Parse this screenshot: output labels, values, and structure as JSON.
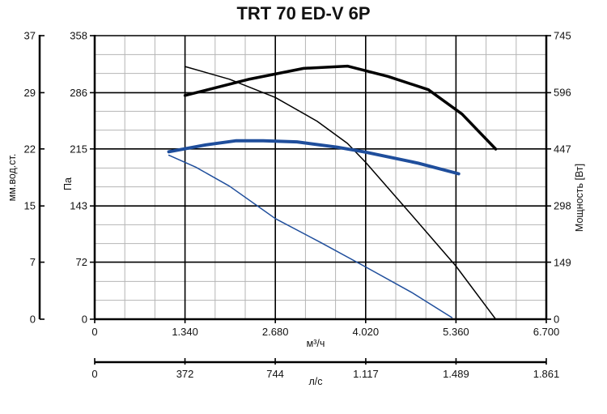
{
  "chart_data": {
    "type": "line",
    "title": "TRT 70 ED-V 6P",
    "grid": true,
    "colors": {
      "black": "#000000",
      "blue": "#1f4e9c"
    },
    "x_axis": {
      "label": "м³/ч",
      "range": [
        0,
        6700
      ],
      "ticks": [
        0,
        1340,
        2680,
        4020,
        5360,
        6700
      ],
      "tick_labels": [
        "0",
        "1.340",
        "2.680",
        "4.020",
        "5.360",
        "6.700"
      ]
    },
    "x2_axis": {
      "label": "л/с",
      "range": [
        0,
        1861
      ],
      "ticks": [
        0,
        372,
        744,
        1117,
        1489,
        1861
      ],
      "tick_labels": [
        "0",
        "372",
        "744",
        "1.117",
        "1.489",
        "1.861"
      ]
    },
    "y_axis": {
      "label": "Па",
      "range": [
        0,
        358
      ],
      "ticks": [
        0,
        72,
        143,
        215,
        286,
        358
      ],
      "tick_labels": [
        "0",
        "72",
        "143",
        "215",
        "286",
        "358"
      ]
    },
    "y_left_axis": {
      "label": "мм.вод.ст.",
      "tick_labels": [
        "0",
        "7",
        "15",
        "22",
        "29",
        "37"
      ]
    },
    "y_right_axis": {
      "label": "Мощность [Вт]",
      "range": [
        0,
        745
      ],
      "ticks": [
        0,
        149,
        298,
        447,
        596,
        745
      ],
      "tick_labels": [
        "0",
        "149",
        "298",
        "447",
        "596",
        "745"
      ]
    },
    "series": [
      {
        "color": "black",
        "width": 3.5,
        "axis": "power",
        "x": [
          1340,
          2300,
          3100,
          3750,
          4350,
          4950,
          5450,
          5950
        ],
        "y": [
          588,
          631,
          659,
          665,
          638,
          603,
          539,
          447
        ]
      },
      {
        "color": "black",
        "width": 1.5,
        "axis": "pressure",
        "x": [
          1340,
          2000,
          2680,
          3300,
          3750,
          4020,
          4800,
          5360,
          5950
        ],
        "y": [
          319,
          303,
          280,
          250,
          222,
          198,
          122,
          67,
          0
        ]
      },
      {
        "color": "blue",
        "width": 4,
        "axis": "power",
        "x": [
          1100,
          1650,
          2100,
          2500,
          3000,
          3600,
          4020,
          4800,
          5400
        ],
        "y": [
          440,
          458,
          469,
          469,
          466,
          452,
          439,
          410,
          382
        ]
      },
      {
        "color": "blue",
        "width": 1.5,
        "axis": "pressure",
        "x": [
          1100,
          1500,
          2000,
          2680,
          3350,
          4020,
          4700,
          5300
        ],
        "y": [
          207,
          192,
          168,
          127,
          97,
          66,
          34,
          2
        ]
      }
    ]
  }
}
